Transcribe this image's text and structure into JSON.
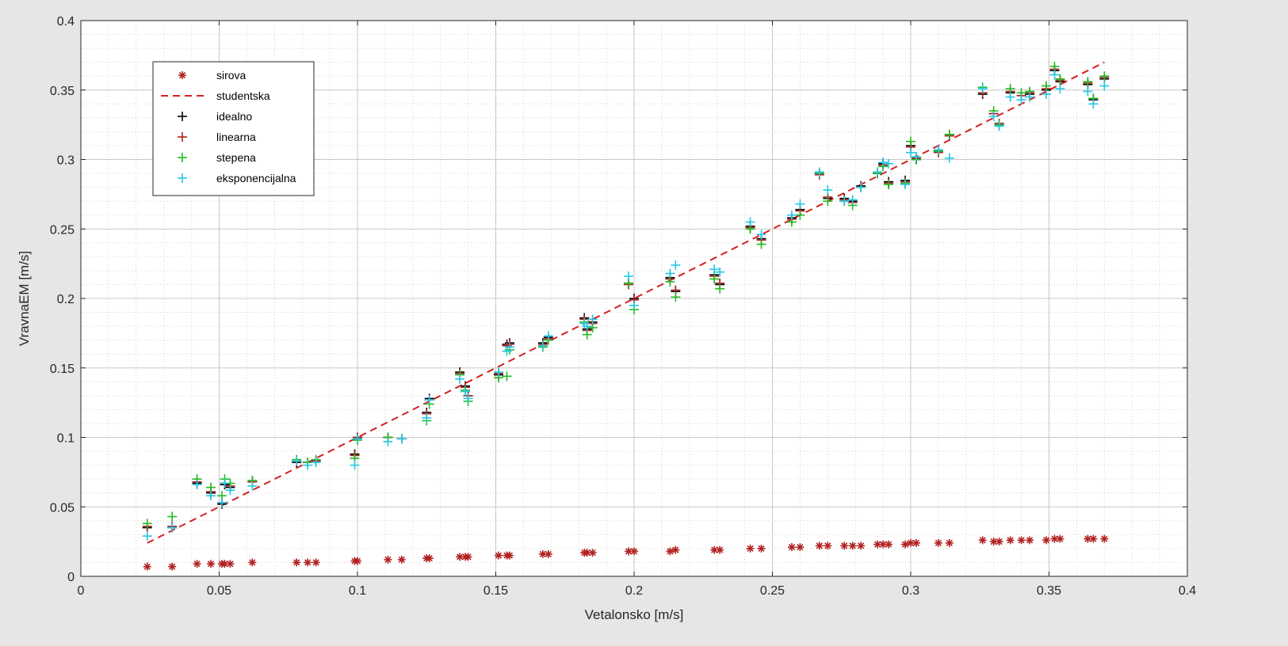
{
  "chart_data": {
    "type": "scatter",
    "xlabel": "Vetalonsko [m/s]",
    "ylabel": "VravnaEM [m/s]",
    "xlim": [
      0,
      0.4
    ],
    "ylim": [
      0,
      0.4
    ],
    "xticks": [
      "0",
      "0.05",
      "0.1",
      "0.15",
      "0.2",
      "0.25",
      "0.3",
      "0.35",
      "0.4"
    ],
    "yticks": [
      "0",
      "0.05",
      "0.1",
      "0.15",
      "0.2",
      "0.25",
      "0.3",
      "0.35",
      "0.4"
    ],
    "grid": true,
    "minor_grid": true,
    "legend_position": "top-left",
    "x": [
      0.024,
      0.033,
      0.042,
      0.047,
      0.051,
      0.052,
      0.054,
      0.062,
      0.078,
      0.082,
      0.085,
      0.099,
      0.1,
      0.111,
      0.116,
      0.125,
      0.126,
      0.137,
      0.139,
      0.14,
      0.151,
      0.154,
      0.155,
      0.167,
      0.169,
      0.182,
      0.183,
      0.185,
      0.198,
      0.2,
      0.213,
      0.215,
      0.229,
      0.231,
      0.242,
      0.246,
      0.257,
      0.26,
      0.267,
      0.27,
      0.276,
      0.279,
      0.282,
      0.288,
      0.29,
      0.292,
      0.298,
      0.3,
      0.302,
      0.31,
      0.314,
      0.326,
      0.33,
      0.332,
      0.336,
      0.34,
      0.343,
      0.349,
      0.352,
      0.354,
      0.364,
      0.366,
      0.37
    ],
    "series": [
      {
        "name": "sirova",
        "marker": "asterisk",
        "color": "#b22222",
        "values": [
          0.007,
          0.007,
          0.009,
          0.009,
          0.009,
          0.009,
          0.009,
          0.01,
          0.01,
          0.01,
          0.01,
          0.011,
          0.011,
          0.012,
          0.012,
          0.013,
          0.013,
          0.014,
          0.014,
          0.014,
          0.015,
          0.015,
          0.015,
          0.016,
          0.016,
          0.017,
          0.017,
          0.017,
          0.018,
          0.018,
          0.018,
          0.019,
          0.019,
          0.019,
          0.02,
          0.02,
          0.021,
          0.021,
          0.022,
          0.022,
          0.022,
          0.022,
          0.022,
          0.023,
          0.023,
          0.023,
          0.023,
          0.024,
          0.024,
          0.024,
          0.024,
          0.026,
          0.025,
          0.025,
          0.026,
          0.026,
          0.026,
          0.026,
          0.027,
          0.027,
          0.027,
          0.027,
          0.027
        ]
      },
      {
        "name": "studentska",
        "line": "dashed",
        "color": "#d62020",
        "x": [
          0.024,
          0.37
        ],
        "values": [
          0.024,
          0.37
        ]
      },
      {
        "name": "idealno",
        "marker": "plus",
        "color": "#000000",
        "values": [
          0.035,
          0.035,
          0.067,
          0.06,
          0.052,
          0.066,
          0.064,
          0.068,
          0.082,
          0.082,
          0.083,
          0.088,
          0.1,
          0.1,
          0.099,
          0.118,
          0.128,
          0.147,
          0.137,
          0.13,
          0.145,
          0.167,
          0.168,
          0.168,
          0.172,
          0.186,
          0.178,
          0.183,
          0.211,
          0.2,
          0.215,
          0.205,
          0.217,
          0.21,
          0.252,
          0.243,
          0.258,
          0.264,
          0.29,
          0.272,
          0.272,
          0.27,
          0.281,
          0.29,
          0.297,
          0.284,
          0.285,
          0.31,
          0.3,
          0.306,
          0.318,
          0.347,
          0.333,
          0.325,
          0.348,
          0.346,
          0.347,
          0.35,
          0.364,
          0.356,
          0.354,
          0.343,
          0.358
        ]
      },
      {
        "name": "linearna",
        "marker": "plus",
        "color": "#b22222",
        "values": [
          0.036,
          0.036,
          0.068,
          0.061,
          0.053,
          0.067,
          0.065,
          0.068,
          0.083,
          0.082,
          0.083,
          0.087,
          0.1,
          0.1,
          0.099,
          0.117,
          0.127,
          0.146,
          0.136,
          0.13,
          0.146,
          0.166,
          0.167,
          0.167,
          0.171,
          0.185,
          0.177,
          0.182,
          0.21,
          0.199,
          0.214,
          0.206,
          0.216,
          0.211,
          0.251,
          0.242,
          0.257,
          0.263,
          0.289,
          0.273,
          0.271,
          0.269,
          0.28,
          0.29,
          0.296,
          0.283,
          0.284,
          0.309,
          0.301,
          0.305,
          0.317,
          0.348,
          0.333,
          0.326,
          0.349,
          0.346,
          0.348,
          0.351,
          0.365,
          0.357,
          0.355,
          0.344,
          0.359
        ]
      },
      {
        "name": "stepena",
        "marker": "plus",
        "color": "#22bb22",
        "values": [
          0.038,
          0.043,
          0.07,
          0.064,
          0.058,
          0.07,
          0.067,
          0.069,
          0.084,
          0.082,
          0.084,
          0.085,
          0.098,
          0.1,
          0.099,
          0.112,
          0.124,
          0.145,
          0.134,
          0.126,
          0.143,
          0.144,
          0.163,
          0.165,
          0.17,
          0.183,
          0.174,
          0.179,
          0.211,
          0.192,
          0.212,
          0.201,
          0.214,
          0.207,
          0.25,
          0.239,
          0.255,
          0.26,
          0.29,
          0.27,
          0.27,
          0.267,
          0.28,
          0.29,
          0.295,
          0.282,
          0.283,
          0.313,
          0.3,
          0.306,
          0.318,
          0.352,
          0.335,
          0.325,
          0.351,
          0.348,
          0.349,
          0.353,
          0.367,
          0.358,
          0.356,
          0.344,
          0.36
        ]
      },
      {
        "name": "eksponencijalna",
        "marker": "plus",
        "color": "#22c8e6",
        "values": [
          0.029,
          0.035,
          0.066,
          0.058,
          0.053,
          0.067,
          0.062,
          0.065,
          0.083,
          0.08,
          0.082,
          0.08,
          0.099,
          0.097,
          0.099,
          0.114,
          0.127,
          0.142,
          0.133,
          0.128,
          0.147,
          0.162,
          0.165,
          0.166,
          0.173,
          0.182,
          0.18,
          0.185,
          0.216,
          0.195,
          0.218,
          0.224,
          0.221,
          0.219,
          0.255,
          0.246,
          0.26,
          0.268,
          0.291,
          0.278,
          0.27,
          0.271,
          0.28,
          0.291,
          0.298,
          0.297,
          0.282,
          0.305,
          0.302,
          0.307,
          0.301,
          0.351,
          0.331,
          0.324,
          0.345,
          0.343,
          0.345,
          0.347,
          0.361,
          0.351,
          0.349,
          0.34,
          0.353
        ]
      }
    ]
  }
}
